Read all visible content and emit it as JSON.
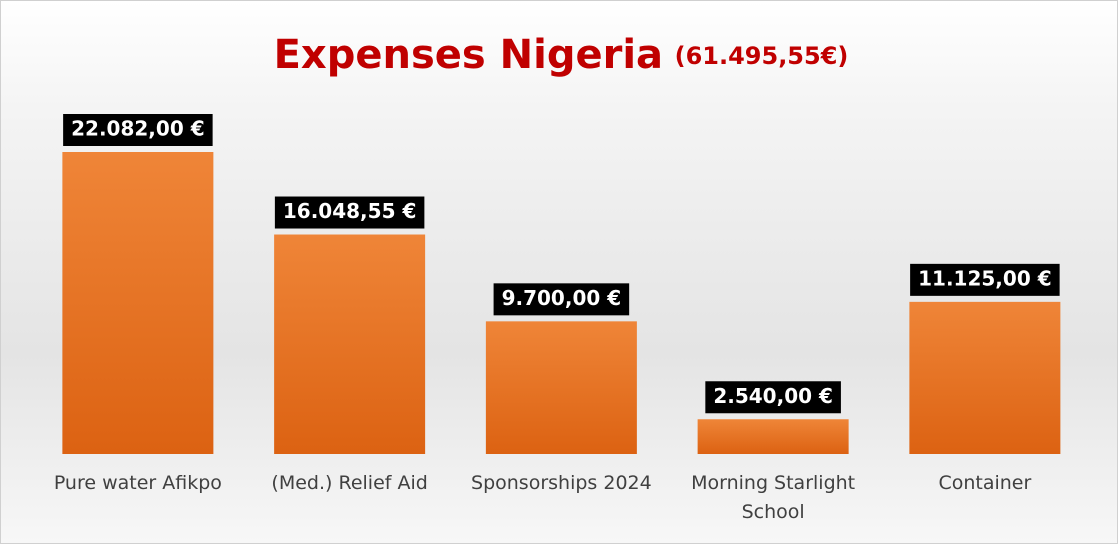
{
  "chart_data": {
    "type": "bar",
    "title": "Expenses Nigeria",
    "subtitle": "(61.495,55€)",
    "categories": [
      "Pure water Afikpo",
      "(Med.) Relief Aid",
      "Sponsorships 2024",
      "Morning Starlight School",
      "Container"
    ],
    "values": [
      22082,
      16048.55,
      9700,
      2540,
      11125
    ],
    "value_labels": [
      "22.082,00 €",
      "16.048,55 €",
      "9.700,00 €",
      "2.540,00 €",
      "11.125,00 €"
    ],
    "color": "#e8752a"
  }
}
